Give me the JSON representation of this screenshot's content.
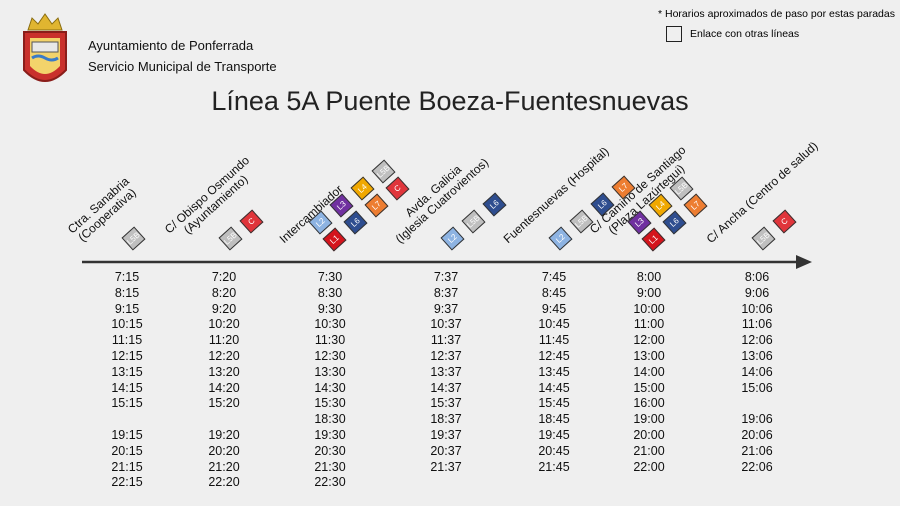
{
  "header": {
    "org": "Ayuntamiento de Ponferrada",
    "service": "Servicio Municipal de Transporte",
    "note": "* Horarios aproximados de paso por estas paradas",
    "legend": "Enlace con otras líneas",
    "title": "Línea 5A Puente Boeza-Fuentesnuevas"
  },
  "stops": [
    {
      "name": [
        "Ctra. Sanabria",
        "(Cooperativa)"
      ],
      "links": [
        "L5B"
      ],
      "times": [
        "7:15",
        "8:15",
        "9:15",
        "10:15",
        "11:15",
        "12:15",
        "13:15",
        "14:15",
        "15:15",
        null,
        "19:15",
        "20:15",
        "21:15",
        "22:15"
      ]
    },
    {
      "name": [
        "C/ Obispo Osmundo",
        "(Ayuntamiento)"
      ],
      "links": [
        "L5B",
        "C"
      ],
      "times": [
        "7:20",
        "8:20",
        "9:20",
        "10:20",
        "11:20",
        "12:20",
        "13:20",
        "14:20",
        "15:20",
        null,
        "19:20",
        "20:20",
        "21:20",
        "22:20"
      ]
    },
    {
      "name": [
        "Intercambiador"
      ],
      "links": [
        "L2",
        "L3",
        "L4",
        "L5B",
        "L1",
        "L6",
        "L7",
        "C"
      ],
      "times": [
        "7:30",
        "8:30",
        "9:30",
        "10:30",
        "11:30",
        "12:30",
        "13:30",
        "14:30",
        "15:30",
        "18:30",
        "19:30",
        "20:30",
        "21:30",
        "22:30"
      ]
    },
    {
      "name": [
        "Avda. Galicia",
        "(Iglesia Cuatrovientos)"
      ],
      "links": [
        "L2",
        "L5B",
        "L6"
      ],
      "times": [
        "7:37",
        "8:37",
        "9:37",
        "10:37",
        "11:37",
        "12:37",
        "13:37",
        "14:37",
        "15:37",
        "18:37",
        "19:37",
        "20:37",
        "21:37"
      ]
    },
    {
      "name": [
        "Fuentesnuevas (Hospital)"
      ],
      "links": [
        "L2",
        "L5B",
        "L6",
        "L7"
      ],
      "times": [
        "7:45",
        "8:45",
        "9:45",
        "10:45",
        "11:45",
        "12:45",
        "13:45",
        "14:45",
        "15:45",
        "18:45",
        "19:45",
        "20:45",
        "21:45"
      ]
    },
    {
      "name": [
        "C/ Camino de Santiago",
        "(Plaza Lazúrtegui)"
      ],
      "links": [
        "L3",
        "L4",
        "L5B",
        "L1",
        "L6",
        "L7"
      ],
      "times": [
        "8:00",
        "9:00",
        "10:00",
        "11:00",
        "12:00",
        "13:00",
        "14:00",
        "15:00",
        "16:00",
        "19:00",
        "20:00",
        "21:00",
        "22:00"
      ]
    },
    {
      "name": [
        "C/ Ancha (Centro de salud)"
      ],
      "links": [
        "L5B",
        "C"
      ],
      "times": [
        "8:06",
        "9:06",
        "10:06",
        "11:06",
        "12:06",
        "13:06",
        "14:06",
        "15:06",
        null,
        "19:06",
        "20:06",
        "21:06",
        "22:06"
      ]
    }
  ]
}
